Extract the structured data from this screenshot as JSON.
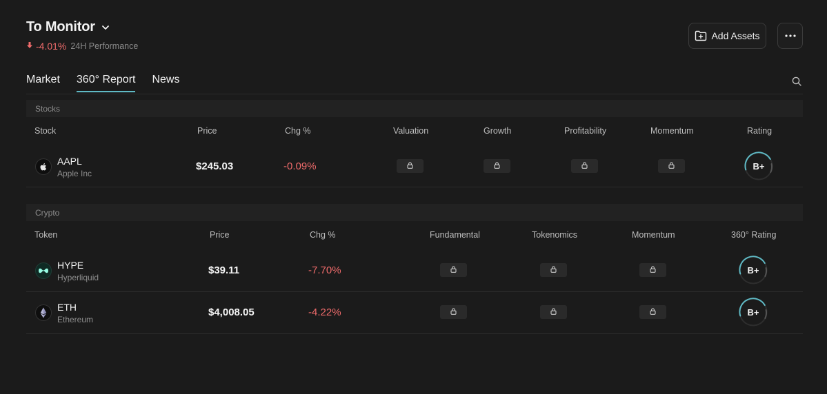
{
  "header": {
    "title": "To Monitor",
    "performance_value": "-4.01%",
    "performance_label": "24H Performance"
  },
  "actions": {
    "add_assets_label": "Add Assets"
  },
  "tabs": [
    {
      "label": "Market",
      "active": false
    },
    {
      "label": "360° Report",
      "active": true
    },
    {
      "label": "News",
      "active": false
    }
  ],
  "stocks": {
    "section_label": "Stocks",
    "columns": [
      "Stock",
      "Price",
      "Chg %",
      "Valuation",
      "Growth",
      "Profitability",
      "Momentum",
      "Rating"
    ],
    "rows": [
      {
        "symbol": "AAPL",
        "name": "Apple Inc",
        "price": "$245.03",
        "change": "-0.09%",
        "rating": "B+"
      }
    ]
  },
  "crypto": {
    "section_label": "Crypto",
    "columns": [
      "Token",
      "Price",
      "Chg %",
      "Fundamental",
      "Tokenomics",
      "Momentum",
      "360° Rating"
    ],
    "rows": [
      {
        "symbol": "HYPE",
        "name": "Hyperliquid",
        "price": "$39.11",
        "change": "-7.70%",
        "rating": "B+"
      },
      {
        "symbol": "ETH",
        "name": "Ethereum",
        "price": "$4,008.05",
        "change": "-4.22%",
        "rating": "B+"
      }
    ]
  },
  "colors": {
    "background": "#1b1b1b",
    "negative": "#ef6b6b",
    "accent": "#5fb9c4",
    "hype_brand": "#97fce4"
  },
  "icons": [
    "chevron-down-icon",
    "arrow-down-icon",
    "folder-plus-icon",
    "more-horizontal-icon",
    "search-icon",
    "apple-icon",
    "hyperliquid-icon",
    "ethereum-icon",
    "lock-icon"
  ]
}
